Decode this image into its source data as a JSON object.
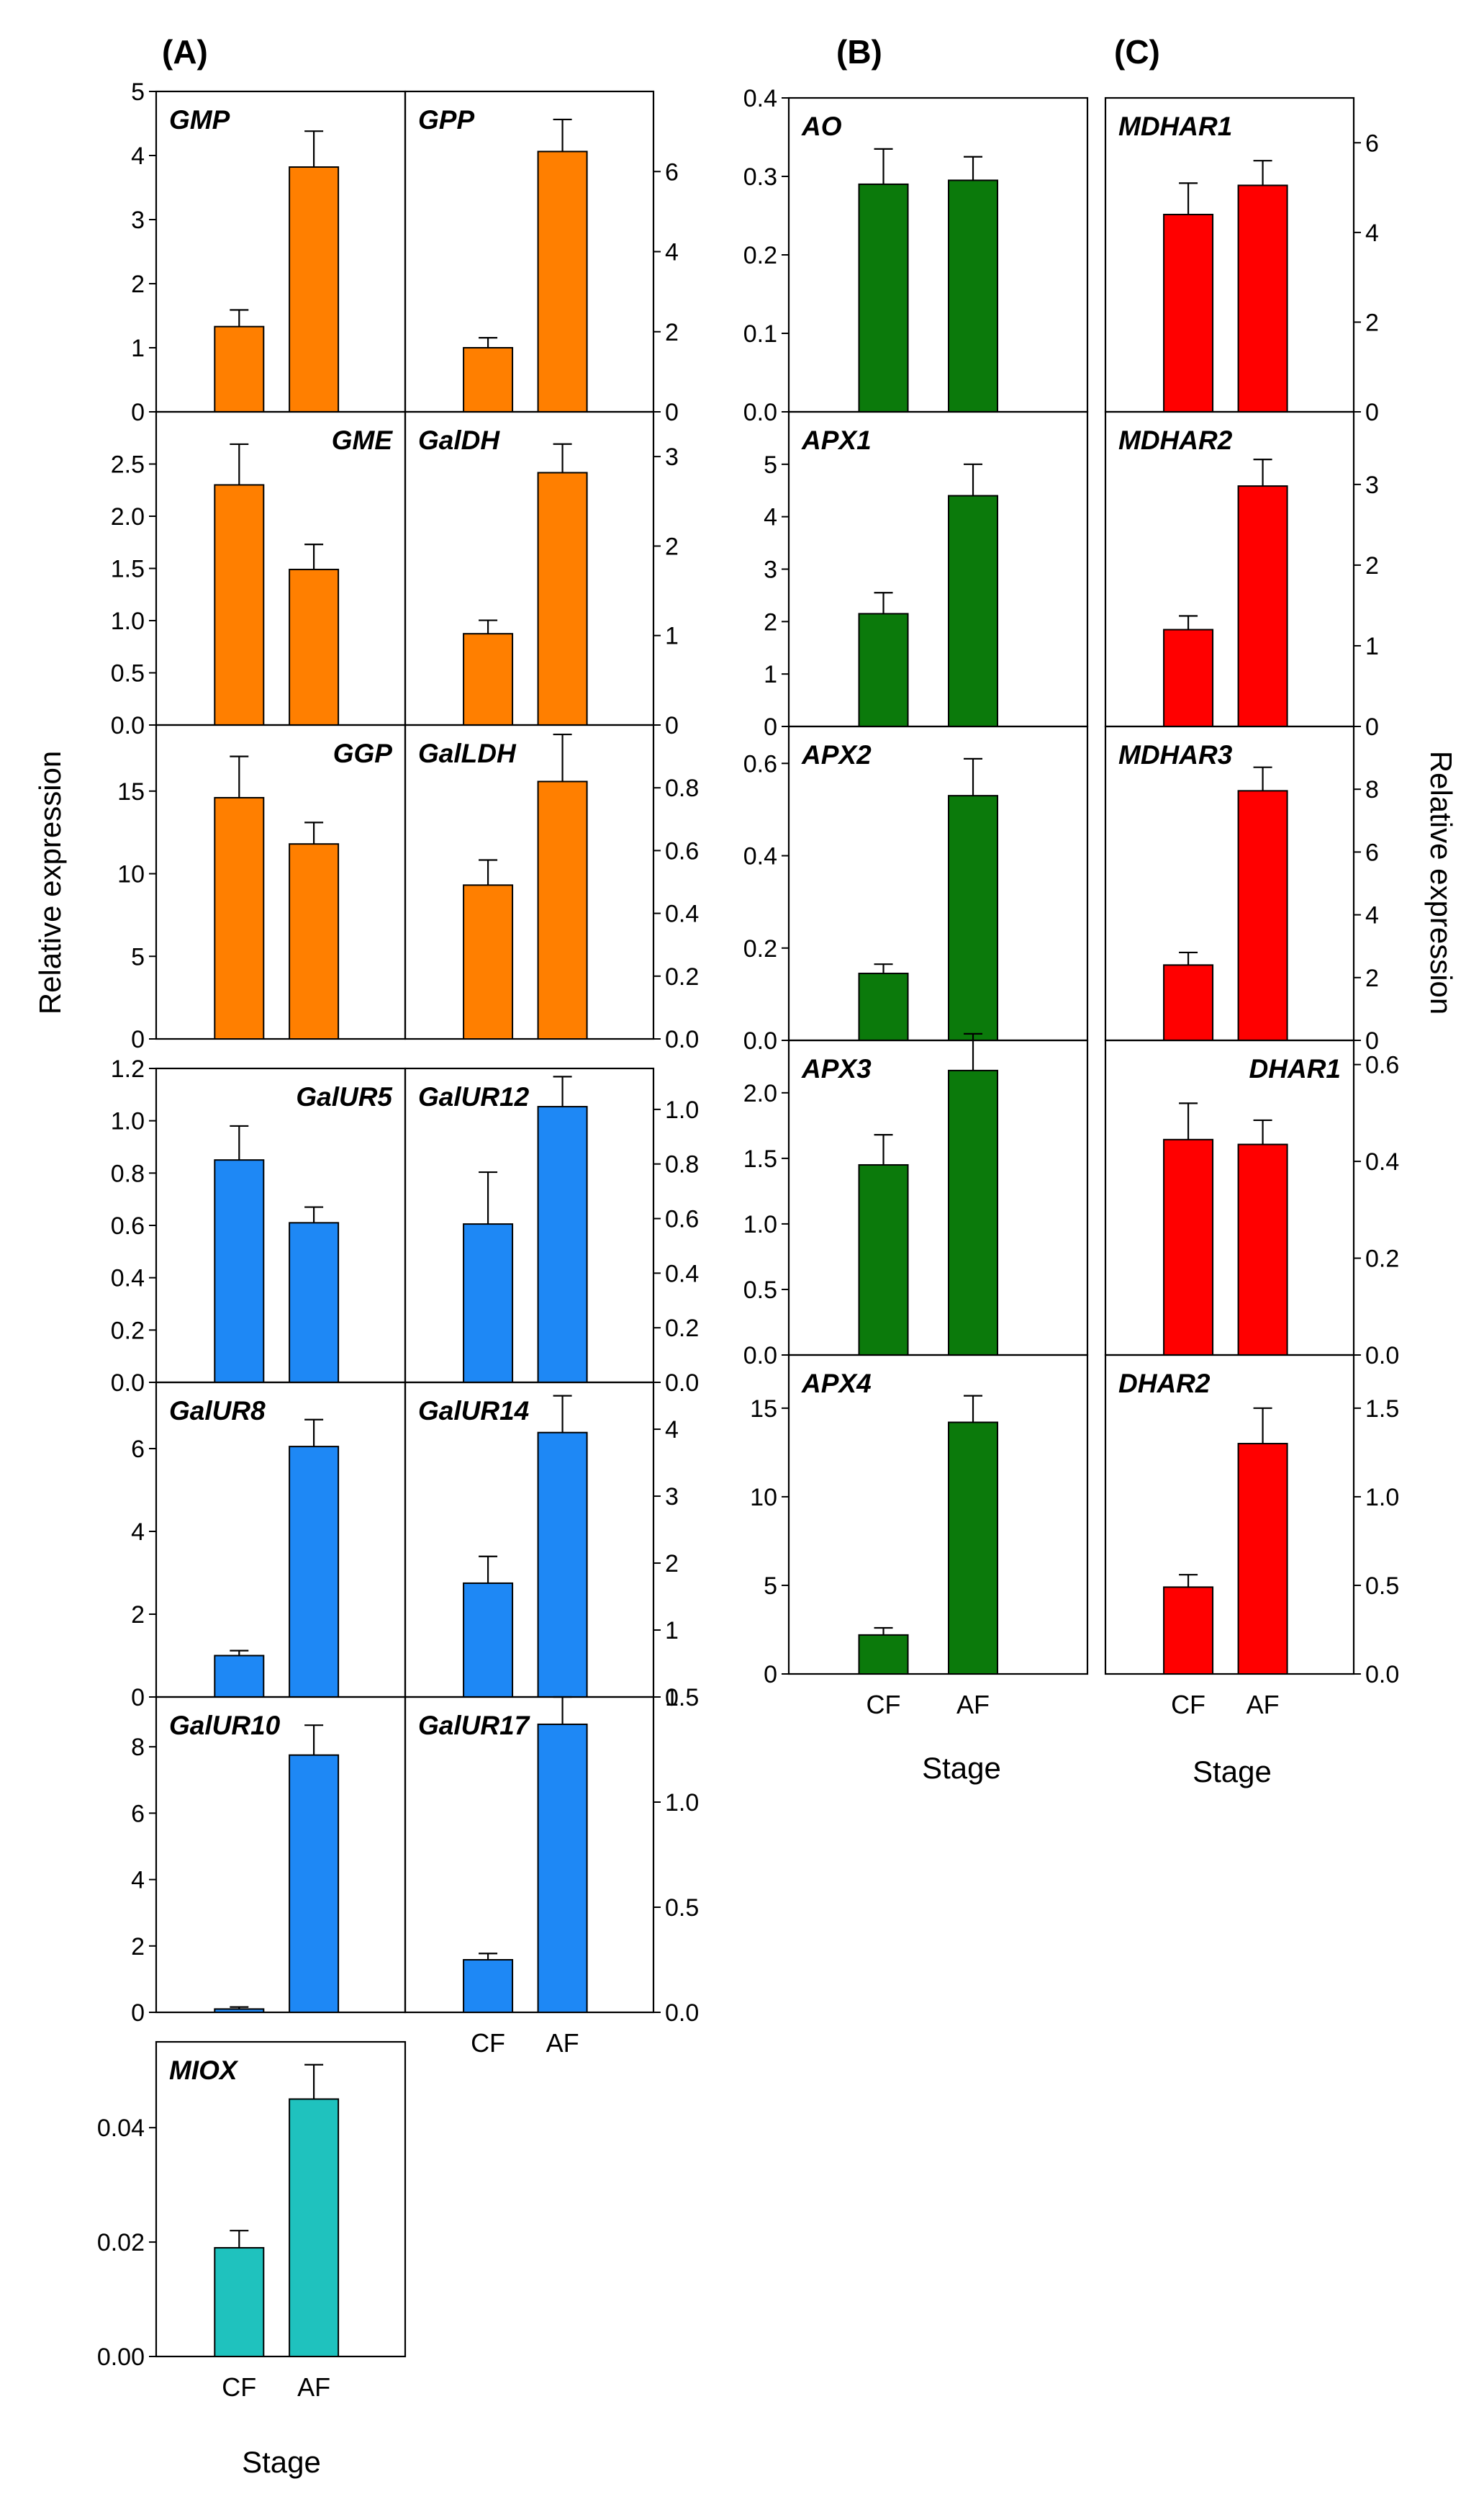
{
  "figure": {
    "panel_letters": [
      "(A)",
      "(B)",
      "(C)"
    ],
    "y_axis_title": "Relative expression",
    "x_axis_title": "Stage"
  },
  "colors": {
    "orange": "#FF7F00",
    "blue": "#1E88F5",
    "teal": "#1FC2BE",
    "green": "#0B7A0B",
    "red": "#FF0000"
  },
  "chart_data": [
    {
      "type": "bar",
      "title": "GMP",
      "categories": [
        "CF",
        "AF"
      ],
      "values": [
        1.33,
        3.82
      ],
      "errors": [
        0.26,
        0.56
      ],
      "ylim": [
        0,
        5
      ],
      "yticks": [
        "0",
        "1",
        "2",
        "3",
        "4",
        "5"
      ],
      "color": "orange"
    },
    {
      "type": "bar",
      "title": "GPP",
      "categories": [
        "CF",
        "AF"
      ],
      "values": [
        1.6,
        6.5
      ],
      "errors": [
        0.25,
        0.8
      ],
      "ylim": [
        0,
        8
      ],
      "yticks": [
        "0",
        "2",
        "4",
        "6"
      ],
      "color": "orange"
    },
    {
      "type": "bar",
      "title": "GME",
      "categories": [
        "CF",
        "AF"
      ],
      "values": [
        2.3,
        1.49
      ],
      "errors": [
        0.39,
        0.24
      ],
      "ylim": [
        0,
        3
      ],
      "yticks": [
        "0.0",
        "0.5",
        "1.0",
        "1.5",
        "2.0",
        "2.5"
      ],
      "color": "orange"
    },
    {
      "type": "bar",
      "title": "GalDH",
      "categories": [
        "CF",
        "AF"
      ],
      "values": [
        1.02,
        2.82
      ],
      "errors": [
        0.15,
        0.32
      ],
      "ylim": [
        0,
        3.5
      ],
      "yticks": [
        "0",
        "1",
        "2",
        "3"
      ],
      "color": "orange"
    },
    {
      "type": "bar",
      "title": "GGP",
      "categories": [
        "CF",
        "AF"
      ],
      "values": [
        14.6,
        11.8
      ],
      "errors": [
        2.5,
        1.3
      ],
      "ylim": [
        0,
        19
      ],
      "yticks": [
        "0",
        "5",
        "10",
        "15"
      ],
      "color": "orange"
    },
    {
      "type": "bar",
      "title": "GalLDH",
      "categories": [
        "CF",
        "AF"
      ],
      "values": [
        0.49,
        0.82
      ],
      "errors": [
        0.08,
        0.15
      ],
      "ylim": [
        0,
        1
      ],
      "yticks": [
        "0.0",
        "0.2",
        "0.4",
        "0.6",
        "0.8"
      ],
      "color": "orange"
    },
    {
      "type": "bar",
      "title": "GalUR5",
      "categories": [
        "CF",
        "AF"
      ],
      "values": [
        0.85,
        0.61
      ],
      "errors": [
        0.13,
        0.06
      ],
      "ylim": [
        0,
        1.2
      ],
      "yticks": [
        "0.0",
        "0.2",
        "0.4",
        "0.6",
        "0.8",
        "1.0",
        "1.2"
      ],
      "color": "blue"
    },
    {
      "type": "bar",
      "title": "GalUR12",
      "categories": [
        "CF",
        "AF"
      ],
      "values": [
        0.58,
        1.01
      ],
      "errors": [
        0.19,
        0.11
      ],
      "ylim": [
        0,
        1.15
      ],
      "yticks": [
        "0.0",
        "0.2",
        "0.4",
        "0.6",
        "0.8",
        "1.0"
      ],
      "color": "blue"
    },
    {
      "type": "bar",
      "title": "GalUR8",
      "categories": [
        "CF",
        "AF"
      ],
      "values": [
        1.0,
        6.05
      ],
      "errors": [
        0.12,
        0.65
      ],
      "ylim": [
        0,
        7.6
      ],
      "yticks": [
        "0",
        "2",
        "4",
        "6"
      ],
      "color": "blue"
    },
    {
      "type": "bar",
      "title": "GalUR14",
      "categories": [
        "CF",
        "AF"
      ],
      "values": [
        1.7,
        3.95
      ],
      "errors": [
        0.4,
        0.55
      ],
      "ylim": [
        0,
        4.7
      ],
      "yticks": [
        "0",
        "1",
        "2",
        "3",
        "4"
      ],
      "color": "blue"
    },
    {
      "type": "bar",
      "title": "GalUR10",
      "categories": [
        "CF",
        "AF"
      ],
      "values": [
        0.1,
        7.75
      ],
      "errors": [
        0.06,
        0.9
      ],
      "ylim": [
        0,
        9.5
      ],
      "yticks": [
        "0",
        "2",
        "4",
        "6",
        "8"
      ],
      "color": "blue"
    },
    {
      "type": "bar",
      "title": "GalUR17",
      "categories": [
        "CF",
        "AF"
      ],
      "values": [
        0.25,
        1.37
      ],
      "errors": [
        0.03,
        0.13
      ],
      "ylim": [
        0,
        1.5
      ],
      "yticks": [
        "0.0",
        "0.5",
        "1.0",
        "1.5"
      ],
      "color": "blue"
    },
    {
      "type": "bar",
      "title": "MIOX",
      "categories": [
        "CF",
        "AF"
      ],
      "values": [
        0.019,
        0.045
      ],
      "errors": [
        0.003,
        0.006
      ],
      "ylim": [
        0,
        0.055
      ],
      "yticks": [
        "0.00",
        "0.02",
        "0.04"
      ],
      "color": "teal"
    },
    {
      "type": "bar",
      "title": "AO",
      "categories": [
        "CF",
        "AF"
      ],
      "values": [
        0.29,
        0.295
      ],
      "errors": [
        0.045,
        0.03
      ],
      "ylim": [
        0,
        0.4
      ],
      "yticks": [
        "0.0",
        "0.1",
        "0.2",
        "0.3",
        "0.4"
      ],
      "color": "green"
    },
    {
      "type": "bar",
      "title": "APX1",
      "categories": [
        "CF",
        "AF"
      ],
      "values": [
        2.15,
        4.4
      ],
      "errors": [
        0.4,
        0.6
      ],
      "ylim": [
        0,
        6
      ],
      "yticks": [
        "0",
        "1",
        "2",
        "3",
        "4",
        "5"
      ],
      "color": "green"
    },
    {
      "type": "bar",
      "title": "APX2",
      "categories": [
        "CF",
        "AF"
      ],
      "values": [
        0.145,
        0.53
      ],
      "errors": [
        0.02,
        0.08
      ],
      "ylim": [
        0,
        0.68
      ],
      "yticks": [
        "0.0",
        "0.2",
        "0.4",
        "0.6"
      ],
      "color": "green"
    },
    {
      "type": "bar",
      "title": "APX3",
      "categories": [
        "CF",
        "AF"
      ],
      "values": [
        1.45,
        2.17
      ],
      "errors": [
        0.23,
        0.28
      ],
      "ylim": [
        0,
        2.4
      ],
      "yticks": [
        "0.0",
        "0.5",
        "1.0",
        "1.5",
        "2.0"
      ],
      "color": "green"
    },
    {
      "type": "bar",
      "title": "APX4",
      "categories": [
        "CF",
        "AF"
      ],
      "values": [
        2.2,
        14.2
      ],
      "errors": [
        0.4,
        1.5
      ],
      "ylim": [
        0,
        18
      ],
      "yticks": [
        "0",
        "5",
        "10",
        "15"
      ],
      "color": "green"
    },
    {
      "type": "bar",
      "title": "MDHAR1",
      "categories": [
        "CF",
        "AF"
      ],
      "values": [
        4.4,
        5.05
      ],
      "errors": [
        0.7,
        0.55
      ],
      "ylim": [
        0,
        7
      ],
      "yticks": [
        "0",
        "2",
        "4",
        "6"
      ],
      "color": "red"
    },
    {
      "type": "bar",
      "title": "MDHAR2",
      "categories": [
        "CF",
        "AF"
      ],
      "values": [
        1.2,
        2.98
      ],
      "errors": [
        0.17,
        0.33
      ],
      "ylim": [
        0,
        3.9
      ],
      "yticks": [
        "0",
        "1",
        "2",
        "3"
      ],
      "color": "red"
    },
    {
      "type": "bar",
      "title": "MDHAR3",
      "categories": [
        "CF",
        "AF"
      ],
      "values": [
        2.4,
        7.95
      ],
      "errors": [
        0.4,
        0.75
      ],
      "ylim": [
        0,
        10
      ],
      "yticks": [
        "0",
        "2",
        "4",
        "6",
        "8"
      ],
      "color": "red"
    },
    {
      "type": "bar",
      "title": "DHAR1",
      "categories": [
        "CF",
        "AF"
      ],
      "values": [
        0.445,
        0.435
      ],
      "errors": [
        0.075,
        0.05
      ],
      "ylim": [
        0,
        0.65
      ],
      "yticks": [
        "0.0",
        "0.2",
        "0.4",
        "0.6"
      ],
      "color": "red"
    },
    {
      "type": "bar",
      "title": "DHAR2",
      "categories": [
        "CF",
        "AF"
      ],
      "values": [
        0.49,
        1.3
      ],
      "errors": [
        0.07,
        0.2
      ],
      "ylim": [
        0,
        1.8
      ],
      "yticks": [
        "0.0",
        "0.5",
        "1.0",
        "1.5"
      ],
      "color": "red"
    }
  ]
}
